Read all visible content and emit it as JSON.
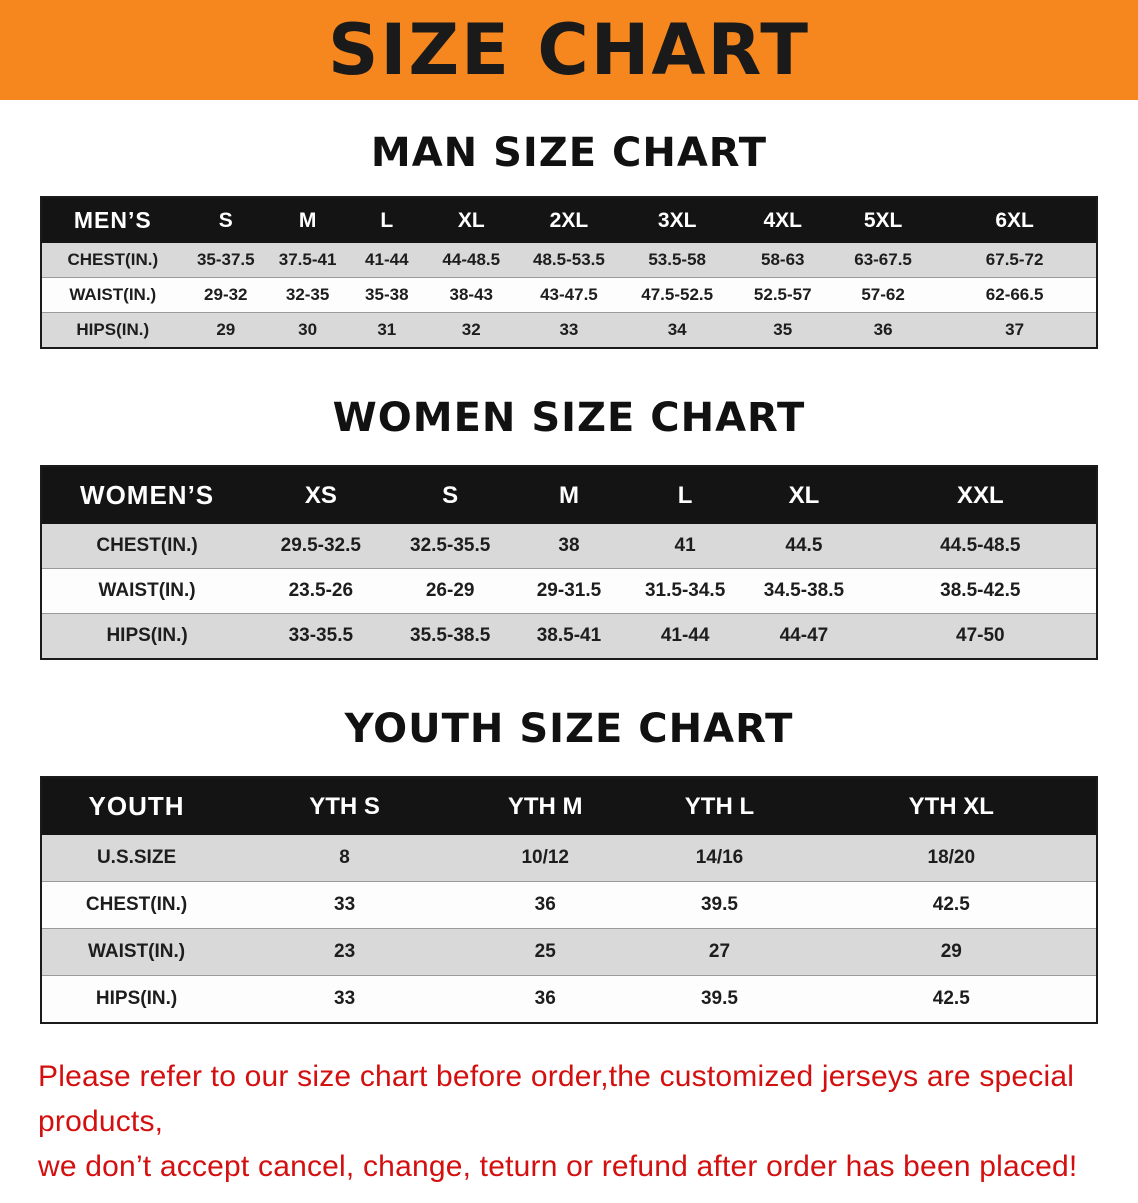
{
  "banner": {
    "title": "SIZE CHART"
  },
  "colors": {
    "banner_bg": "#f6871f",
    "header_row_bg": "#141414",
    "stripe_gray": "#d9d9d9",
    "disclaimer_red": "#d40f0f"
  },
  "men": {
    "heading": "MAN SIZE CHART",
    "table": {
      "header": [
        "MEN’S",
        "S",
        "M",
        "L",
        "XL",
        "2XL",
        "3XL",
        "4XL",
        "5XL",
        "6XL"
      ],
      "rows": [
        [
          "CHEST(IN.)",
          "35-37.5",
          "37.5-41",
          "41-44",
          "44-48.5",
          "48.5-53.5",
          "53.5-58",
          "58-63",
          "63-67.5",
          "67.5-72"
        ],
        [
          "WAIST(IN.)",
          "29-32",
          "32-35",
          "35-38",
          "38-43",
          "43-47.5",
          "47.5-52.5",
          "52.5-57",
          "57-62",
          "62-66.5"
        ],
        [
          "HIPS(IN.)",
          "29",
          "30",
          "31",
          "32",
          "33",
          "34",
          "35",
          "36",
          "37"
        ]
      ]
    }
  },
  "women": {
    "heading": "WOMEN SIZE CHART",
    "table": {
      "header": [
        "WOMEN’S",
        "XS",
        "S",
        "M",
        "L",
        "XL",
        "XXL"
      ],
      "rows": [
        [
          "CHEST(IN.)",
          "29.5-32.5",
          "32.5-35.5",
          "38",
          "41",
          "44.5",
          "44.5-48.5"
        ],
        [
          "WAIST(IN.)",
          "23.5-26",
          "26-29",
          "29-31.5",
          "31.5-34.5",
          "34.5-38.5",
          "38.5-42.5"
        ],
        [
          "HIPS(IN.)",
          "33-35.5",
          "35.5-38.5",
          "38.5-41",
          "41-44",
          "44-47",
          "47-50"
        ]
      ]
    }
  },
  "youth": {
    "heading": "YOUTH SIZE CHART",
    "table": {
      "header": [
        "YOUTH",
        "YTH S",
        "YTH M",
        "YTH L",
        "YTH XL"
      ],
      "rows": [
        [
          "U.S.SIZE",
          "8",
          "10/12",
          "14/16",
          "18/20"
        ],
        [
          "CHEST(IN.)",
          "33",
          "36",
          "39.5",
          "42.5"
        ],
        [
          "WAIST(IN.)",
          "23",
          "25",
          "27",
          "29"
        ],
        [
          "HIPS(IN.)",
          "33",
          "36",
          "39.5",
          "42.5"
        ]
      ]
    }
  },
  "disclaimer": {
    "line1": "Please refer to our size chart before order,the customized jerseys are special products,",
    "line2": "we don’t accept cancel, change, teturn or refund after order has been placed!"
  }
}
